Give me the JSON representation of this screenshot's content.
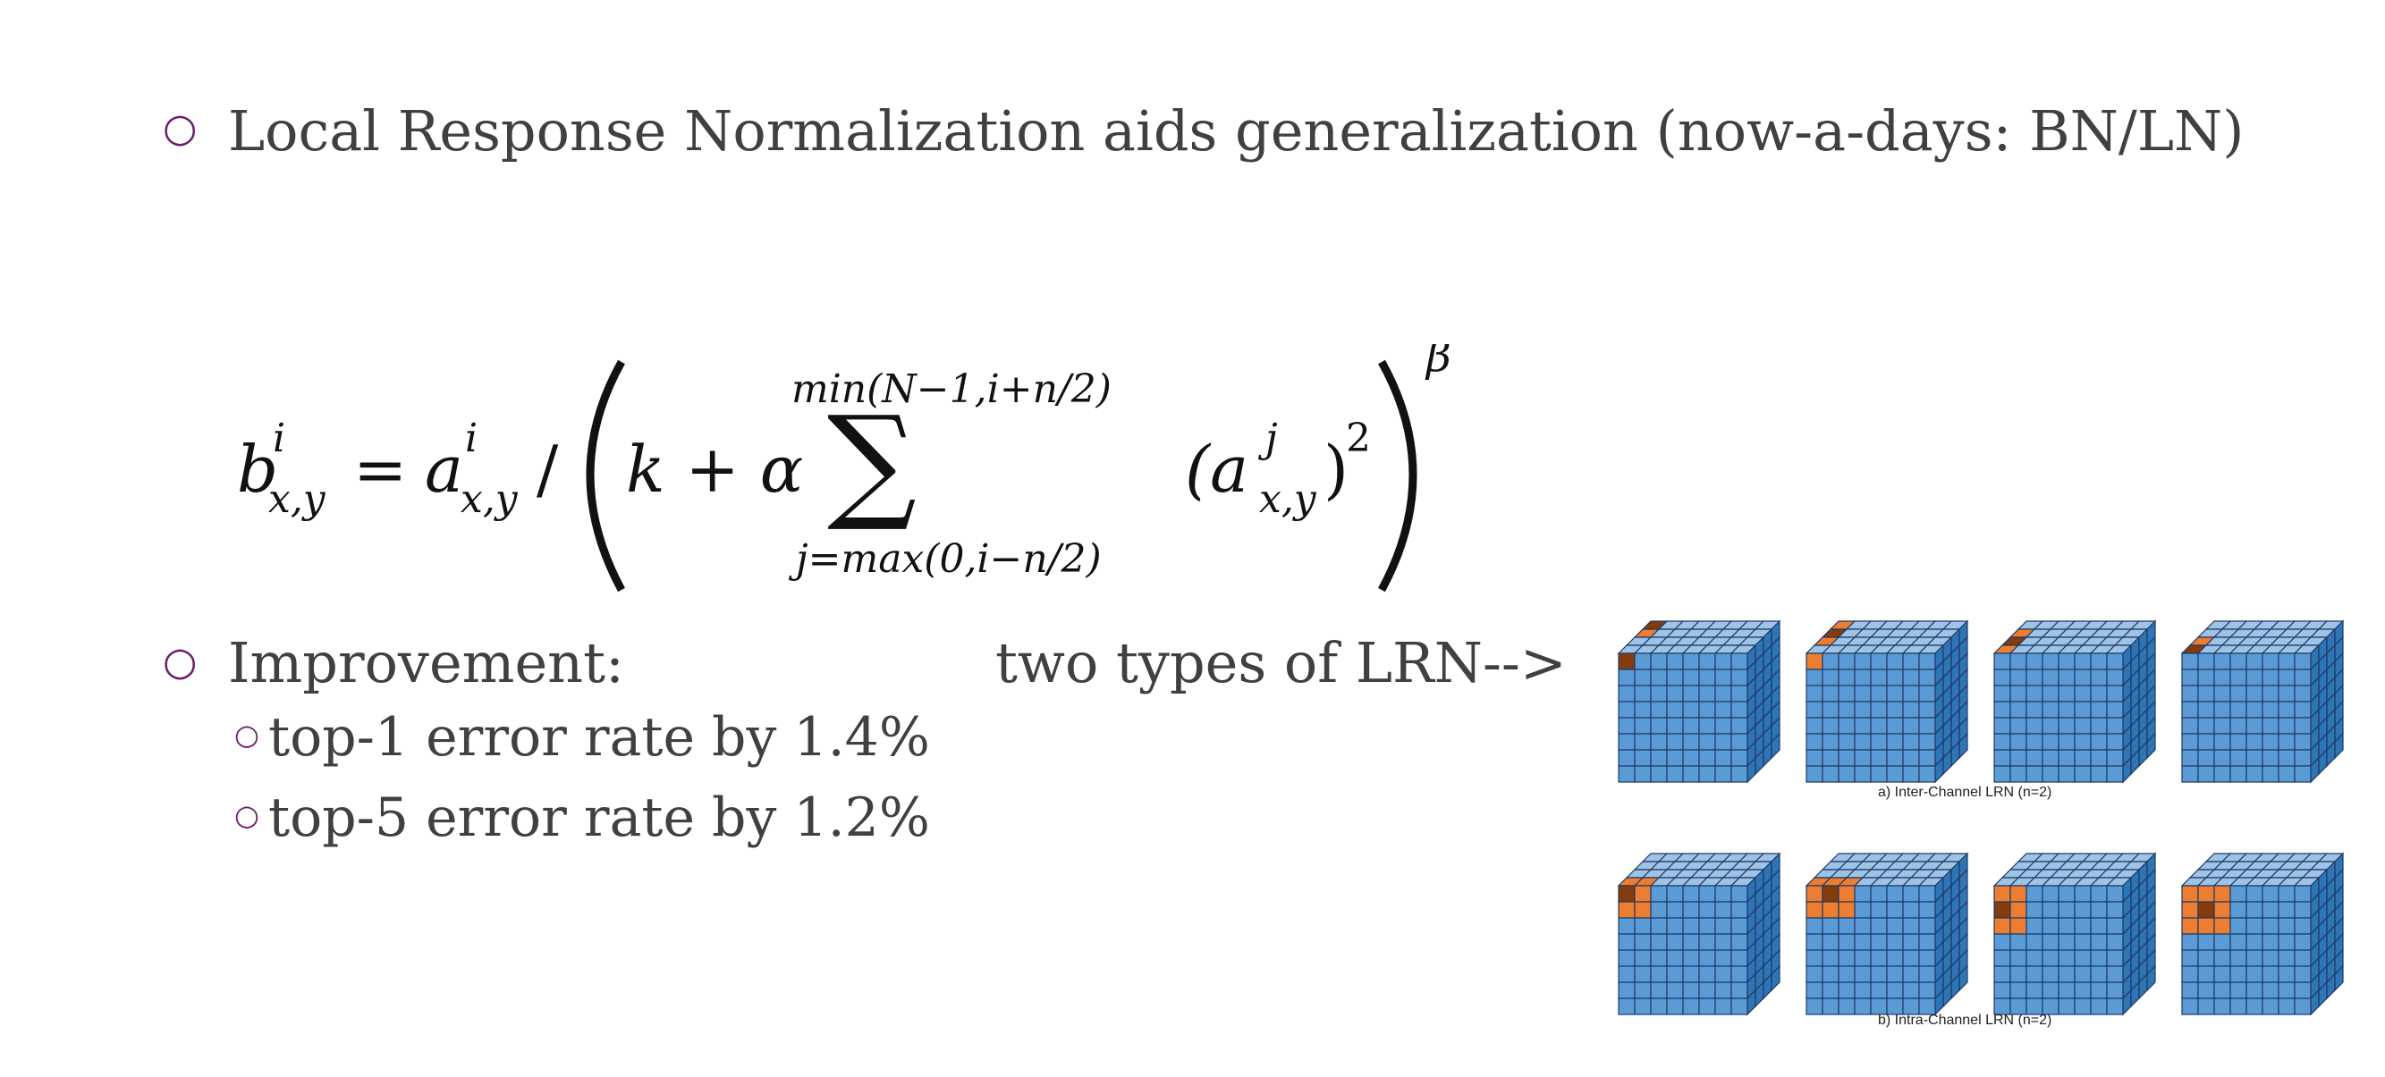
{
  "bullets": {
    "b1": "Local Response Normalization aids generalization (now-a-days: BN/LN)",
    "b2": "Improvement:",
    "s1": "top-1 error rate by 1.4%",
    "s2": "top-5 error rate by 1.2%"
  },
  "note": "two types of LRN-->",
  "formula": {
    "lhs_base": "b",
    "lhs_sup": "i",
    "lhs_sub": "x,y",
    "eq": "=",
    "a_base": "a",
    "a_sup": "i",
    "a_sub": "x,y",
    "slash": "/",
    "k_term": "k + α",
    "sum_upper": "min(N−1,i+n/2)",
    "sum_lower": "j=max(0,i−n/2)",
    "sum_symbol": "∑",
    "term_base": "(a",
    "term_sup": "j",
    "term_sub": "x,y",
    "term_close": ")",
    "term_pow": "2",
    "outer_pow": "β"
  },
  "figure": {
    "caption_a": "a) Inter-Channel LRN (n=2)",
    "caption_b": "b) Intra-Channel LRN (n=2)",
    "colors": {
      "cube": "#5b9bd5",
      "top": "#9dc3e6",
      "side": "#2e75b6",
      "hl": "#ed7d31",
      "center": "#843c0c",
      "line": "#1f3864"
    }
  }
}
